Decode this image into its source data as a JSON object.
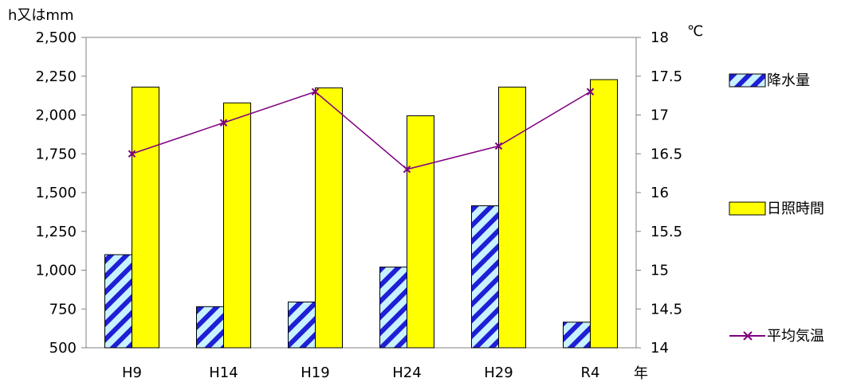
{
  "chart_data": {
    "type": "bar",
    "categories": [
      "H9",
      "H14",
      "H19",
      "H24",
      "H29",
      "R4"
    ],
    "x_unit": "年",
    "y_left_unit": "h又はmm",
    "y_right_unit": "℃",
    "y_left_range": [
      500,
      2500
    ],
    "y_left_ticks": [
      "500",
      "750",
      "1,000",
      "1,250",
      "1,500",
      "1,750",
      "2,000",
      "2,250",
      "2,500"
    ],
    "y_right_range": [
      14,
      18
    ],
    "y_right_ticks": [
      "14",
      "14.5",
      "15",
      "15.5",
      "16",
      "16.5",
      "17",
      "17.5",
      "18"
    ],
    "grid": false,
    "legend_position": "right",
    "series": [
      {
        "name": "降水量",
        "kind": "bar",
        "axis": "left",
        "color": "#1f1fd6",
        "fill": "#c8f2ff",
        "values": [
          1100,
          765,
          795,
          1020,
          1415,
          665
        ]
      },
      {
        "name": "日照時間",
        "kind": "bar",
        "axis": "left",
        "color": "#ffff00",
        "values": [
          2180,
          2078,
          2175,
          1995,
          2180,
          2228
        ]
      },
      {
        "name": "平均気温",
        "kind": "line",
        "axis": "right",
        "color": "#800080",
        "values": [
          16.5,
          16.9,
          17.3,
          16.3,
          16.6,
          17.3
        ]
      }
    ]
  }
}
